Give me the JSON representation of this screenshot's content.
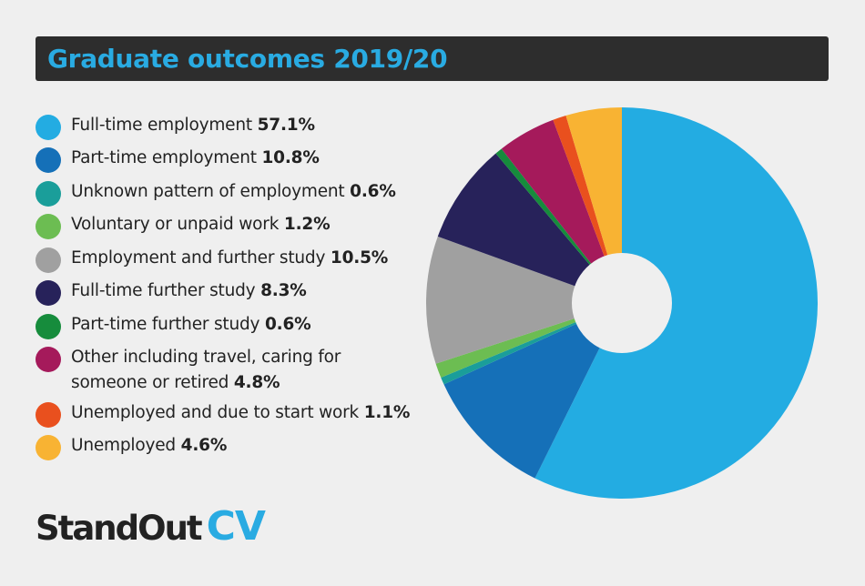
{
  "title": "Graduate outcomes 2019/20",
  "logo": {
    "part1": "StandOut",
    "part2": "CV"
  },
  "legend": [
    {
      "label": "Full-time employment",
      "value": "57.1%",
      "label2": ""
    },
    {
      "label": "Part-time employment",
      "value": "10.8%",
      "label2": ""
    },
    {
      "label": "Unknown pattern of employment",
      "value": "0.6%",
      "label2": ""
    },
    {
      "label": "Voluntary or unpaid work",
      "value": "1.2%",
      "label2": ""
    },
    {
      "label": "Employment and further study",
      "value": "10.5%",
      "label2": ""
    },
    {
      "label": "Full-time further study",
      "value": "8.3%",
      "label2": ""
    },
    {
      "label": "Part-time further study",
      "value": "0.6%",
      "label2": ""
    },
    {
      "label": "Other including travel, caring for",
      "value": "4.8%",
      "label2": "someone or retired"
    },
    {
      "label": "Unemployed and due to start work",
      "value": "1.1%",
      "label2": ""
    },
    {
      "label": "Unemployed",
      "value": "4.6%",
      "label2": ""
    }
  ],
  "chart_data": {
    "type": "pie",
    "donut": true,
    "categories": [
      "Full-time employment",
      "Part-time employment",
      "Unknown pattern of employment",
      "Voluntary or unpaid work",
      "Employment and further study",
      "Full-time further study",
      "Part-time further study",
      "Other including travel, caring for someone or retired",
      "Unemployed and due to start work",
      "Unemployed"
    ],
    "values": [
      57.1,
      10.8,
      0.6,
      1.2,
      10.5,
      8.3,
      0.6,
      4.8,
      1.1,
      4.6
    ],
    "colors": [
      "#23ace2",
      "#1570b8",
      "#1a9e9a",
      "#6cbd52",
      "#a0a0a0",
      "#27225a",
      "#168c3c",
      "#a51a5b",
      "#e9501e",
      "#f8b333"
    ],
    "title": "Graduate outcomes 2019/20",
    "legend": "left"
  }
}
